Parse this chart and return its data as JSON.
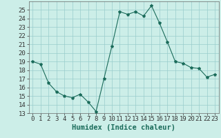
{
  "x": [
    0,
    1,
    2,
    3,
    4,
    5,
    6,
    7,
    8,
    9,
    10,
    11,
    12,
    13,
    14,
    15,
    16,
    17,
    18,
    19,
    20,
    21,
    22,
    23
  ],
  "y": [
    19.0,
    18.7,
    16.5,
    15.5,
    15.0,
    14.8,
    15.2,
    14.3,
    13.2,
    17.0,
    20.8,
    24.8,
    24.5,
    24.8,
    24.3,
    25.5,
    23.5,
    21.3,
    19.0,
    18.8,
    18.3,
    18.2,
    17.2,
    17.5
  ],
  "line_color": "#1a6b5a",
  "marker": "*",
  "marker_size": 3,
  "bg_color": "#cceee8",
  "grid_color": "#99cccc",
  "xlabel": "Humidex (Indice chaleur)",
  "ylim": [
    13,
    26
  ],
  "xlim": [
    -0.5,
    23.5
  ],
  "yticks": [
    13,
    14,
    15,
    16,
    17,
    18,
    19,
    20,
    21,
    22,
    23,
    24,
    25
  ],
  "xticks": [
    0,
    1,
    2,
    3,
    4,
    5,
    6,
    7,
    8,
    9,
    10,
    11,
    12,
    13,
    14,
    15,
    16,
    17,
    18,
    19,
    20,
    21,
    22,
    23
  ],
  "tick_label_size": 6.5,
  "xlabel_size": 7.5,
  "xlabel_weight": "bold"
}
